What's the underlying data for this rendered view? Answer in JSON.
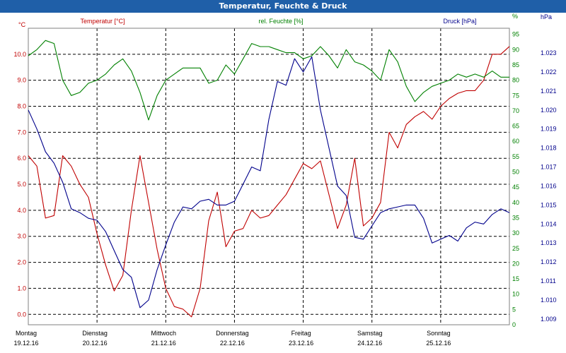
{
  "window_title": "Temperatur, Feuchte & Druck",
  "chart_data": {
    "type": "line",
    "title": "Temperatur, Feuchte & Druck",
    "grid": true,
    "x_start": "2016-12-19 00:00",
    "x_end": "2016-12-26 00:00",
    "x_ticks": [
      {
        "day": "Montag",
        "date": "19.12.16"
      },
      {
        "day": "Dienstag",
        "date": "20.12.16"
      },
      {
        "day": "Mittwoch",
        "date": "21.12.16"
      },
      {
        "day": "Donnerstag",
        "date": "22.12.16"
      },
      {
        "day": "Freitag",
        "date": "23.12.16"
      },
      {
        "day": "Samstag",
        "date": "24.12.16"
      },
      {
        "day": "Sonntag",
        "date": "25.12.16"
      }
    ],
    "axes": {
      "temperature": {
        "unit": "°C",
        "ylim": [
          -0.4,
          11.0
        ],
        "ticks": [
          "0.0",
          "1.0",
          "2.0",
          "3.0",
          "4.0",
          "5.0",
          "6.0",
          "7.0",
          "8.0",
          "9.0",
          "10.0"
        ],
        "color": "#c00000"
      },
      "humidity": {
        "unit": "%",
        "ylim": [
          0,
          97
        ],
        "ticks": [
          "0",
          "5",
          "10",
          "15",
          "20",
          "25",
          "30",
          "35",
          "40",
          "45",
          "50",
          "55",
          "60",
          "65",
          "70",
          "75",
          "80",
          "85",
          "90",
          "95",
          "%"
        ],
        "color": "#008000"
      },
      "pressure": {
        "unit": "hPa",
        "ylim": [
          1.0087,
          1.0243
        ],
        "ticks": [
          "1.009",
          "1.010",
          "1.011",
          "1.012",
          "1.013",
          "1.014",
          "1.015",
          "1.016",
          "1.017",
          "1.018",
          "1.019",
          "1.020",
          "1.021",
          "1.022",
          "1.023"
        ],
        "color": "#00008b"
      }
    },
    "series": [
      {
        "name": "Temperatur [°C]",
        "axis": "temperature",
        "color": "#c00000",
        "x": [
          "2016-12-19 00:00",
          "2016-12-19 03:00",
          "2016-12-19 06:00",
          "2016-12-19 09:00",
          "2016-12-19 12:00",
          "2016-12-19 15:00",
          "2016-12-19 18:00",
          "2016-12-19 21:00",
          "2016-12-20 00:00",
          "2016-12-20 03:00",
          "2016-12-20 06:00",
          "2016-12-20 09:00",
          "2016-12-20 12:00",
          "2016-12-20 15:00",
          "2016-12-20 18:00",
          "2016-12-20 21:00",
          "2016-12-21 00:00",
          "2016-12-21 03:00",
          "2016-12-21 06:00",
          "2016-12-21 09:00",
          "2016-12-21 12:00",
          "2016-12-21 15:00",
          "2016-12-21 18:00",
          "2016-12-21 21:00",
          "2016-12-22 00:00",
          "2016-12-22 03:00",
          "2016-12-22 06:00",
          "2016-12-22 09:00",
          "2016-12-22 12:00",
          "2016-12-22 15:00",
          "2016-12-22 18:00",
          "2016-12-22 21:00",
          "2016-12-23 00:00",
          "2016-12-23 03:00",
          "2016-12-23 06:00",
          "2016-12-23 09:00",
          "2016-12-23 12:00",
          "2016-12-23 15:00",
          "2016-12-23 18:00",
          "2016-12-23 21:00",
          "2016-12-24 00:00",
          "2016-12-24 03:00",
          "2016-12-24 06:00",
          "2016-12-24 09:00",
          "2016-12-24 12:00",
          "2016-12-24 15:00",
          "2016-12-24 18:00",
          "2016-12-24 21:00",
          "2016-12-25 00:00",
          "2016-12-25 03:00",
          "2016-12-25 06:00",
          "2016-12-25 09:00",
          "2016-12-25 12:00",
          "2016-12-25 15:00",
          "2016-12-25 18:00",
          "2016-12-25 21:00",
          "2016-12-26 00:00"
        ],
        "y": [
          6.1,
          5.7,
          3.7,
          3.8,
          6.1,
          5.7,
          5.0,
          4.5,
          3.1,
          1.9,
          0.9,
          1.5,
          4.0,
          6.1,
          4.3,
          2.5,
          1.0,
          0.3,
          0.2,
          -0.1,
          1.0,
          3.6,
          4.7,
          2.6,
          3.2,
          3.3,
          4.0,
          3.7,
          3.8,
          4.2,
          4.6,
          5.2,
          5.8,
          5.6,
          5.9,
          4.6,
          3.3,
          4.2,
          6.0,
          3.4,
          3.7,
          4.3,
          7.0,
          6.4,
          7.3,
          7.6,
          7.8,
          7.5,
          8.0,
          8.3,
          8.5,
          8.6,
          8.6,
          9.0,
          10.0,
          10.0,
          10.3
        ]
      },
      {
        "name": "rel. Feuchte [%]",
        "axis": "humidity",
        "color": "#008000",
        "x": [
          "2016-12-19 00:00",
          "2016-12-19 03:00",
          "2016-12-19 06:00",
          "2016-12-19 09:00",
          "2016-12-19 12:00",
          "2016-12-19 15:00",
          "2016-12-19 18:00",
          "2016-12-19 21:00",
          "2016-12-20 00:00",
          "2016-12-20 03:00",
          "2016-12-20 06:00",
          "2016-12-20 09:00",
          "2016-12-20 12:00",
          "2016-12-20 15:00",
          "2016-12-20 18:00",
          "2016-12-20 21:00",
          "2016-12-21 00:00",
          "2016-12-21 03:00",
          "2016-12-21 06:00",
          "2016-12-21 09:00",
          "2016-12-21 12:00",
          "2016-12-21 15:00",
          "2016-12-21 18:00",
          "2016-12-21 21:00",
          "2016-12-22 00:00",
          "2016-12-22 03:00",
          "2016-12-22 06:00",
          "2016-12-22 09:00",
          "2016-12-22 12:00",
          "2016-12-22 15:00",
          "2016-12-22 18:00",
          "2016-12-22 21:00",
          "2016-12-23 00:00",
          "2016-12-23 03:00",
          "2016-12-23 06:00",
          "2016-12-23 09:00",
          "2016-12-23 12:00",
          "2016-12-23 15:00",
          "2016-12-23 18:00",
          "2016-12-23 21:00",
          "2016-12-24 00:00",
          "2016-12-24 03:00",
          "2016-12-24 06:00",
          "2016-12-24 09:00",
          "2016-12-24 12:00",
          "2016-12-24 15:00",
          "2016-12-24 18:00",
          "2016-12-24 21:00",
          "2016-12-25 00:00",
          "2016-12-25 03:00",
          "2016-12-25 06:00",
          "2016-12-25 09:00",
          "2016-12-25 12:00",
          "2016-12-25 15:00",
          "2016-12-25 18:00",
          "2016-12-25 21:00",
          "2016-12-26 00:00"
        ],
        "y": [
          88,
          90,
          93,
          92,
          80,
          75,
          76,
          79,
          80,
          82,
          85,
          87,
          83,
          76,
          67,
          75,
          80,
          82,
          84,
          84,
          84,
          79,
          80,
          85,
          82,
          87,
          92,
          91,
          91,
          90,
          89,
          89,
          87,
          88,
          91,
          88,
          84,
          90,
          86,
          85,
          83,
          80,
          90,
          86,
          78,
          73,
          76,
          78,
          79,
          80,
          82,
          81,
          82,
          81,
          83,
          81,
          81
        ]
      },
      {
        "name": "Druck [hPa]",
        "axis": "pressure",
        "color": "#00008b",
        "x": [
          "2016-12-19 00:00",
          "2016-12-19 03:00",
          "2016-12-19 06:00",
          "2016-12-19 09:00",
          "2016-12-19 12:00",
          "2016-12-19 15:00",
          "2016-12-19 18:00",
          "2016-12-19 21:00",
          "2016-12-20 00:00",
          "2016-12-20 03:00",
          "2016-12-20 06:00",
          "2016-12-20 09:00",
          "2016-12-20 12:00",
          "2016-12-20 15:00",
          "2016-12-20 18:00",
          "2016-12-20 21:00",
          "2016-12-21 00:00",
          "2016-12-21 03:00",
          "2016-12-21 06:00",
          "2016-12-21 09:00",
          "2016-12-21 12:00",
          "2016-12-21 15:00",
          "2016-12-21 18:00",
          "2016-12-21 21:00",
          "2016-12-22 00:00",
          "2016-12-22 03:00",
          "2016-12-22 06:00",
          "2016-12-22 09:00",
          "2016-12-22 12:00",
          "2016-12-22 15:00",
          "2016-12-22 18:00",
          "2016-12-22 21:00",
          "2016-12-23 00:00",
          "2016-12-23 03:00",
          "2016-12-23 06:00",
          "2016-12-23 09:00",
          "2016-12-23 12:00",
          "2016-12-23 15:00",
          "2016-12-23 18:00",
          "2016-12-23 21:00",
          "2016-12-24 00:00",
          "2016-12-24 03:00",
          "2016-12-24 06:00",
          "2016-12-24 09:00",
          "2016-12-24 12:00",
          "2016-12-24 15:00",
          "2016-12-24 18:00",
          "2016-12-24 21:00",
          "2016-12-25 00:00",
          "2016-12-25 03:00",
          "2016-12-25 06:00",
          "2016-12-25 09:00",
          "2016-12-25 12:00",
          "2016-12-25 15:00",
          "2016-12-25 18:00",
          "2016-12-25 21:00",
          "2016-12-26 00:00"
        ],
        "y": [
          1.02,
          1.019,
          1.0178,
          1.0172,
          1.0162,
          1.0148,
          1.0146,
          1.0143,
          1.0142,
          1.0136,
          1.0126,
          1.0116,
          1.0112,
          1.0096,
          1.01,
          1.0116,
          1.0129,
          1.0141,
          1.0149,
          1.0148,
          1.0152,
          1.0153,
          1.015,
          1.015,
          1.0152,
          1.0161,
          1.017,
          1.0168,
          1.0195,
          1.0215,
          1.0213,
          1.0227,
          1.022,
          1.0228,
          1.02,
          1.018,
          1.016,
          1.0155,
          1.0133,
          1.0132,
          1.0139,
          1.0146,
          1.0148,
          1.0149,
          1.015,
          1.015,
          1.0143,
          1.013,
          1.0132,
          1.0134,
          1.0131,
          1.0138,
          1.0141,
          1.014,
          1.0145,
          1.0148,
          1.0146
        ]
      }
    ]
  }
}
